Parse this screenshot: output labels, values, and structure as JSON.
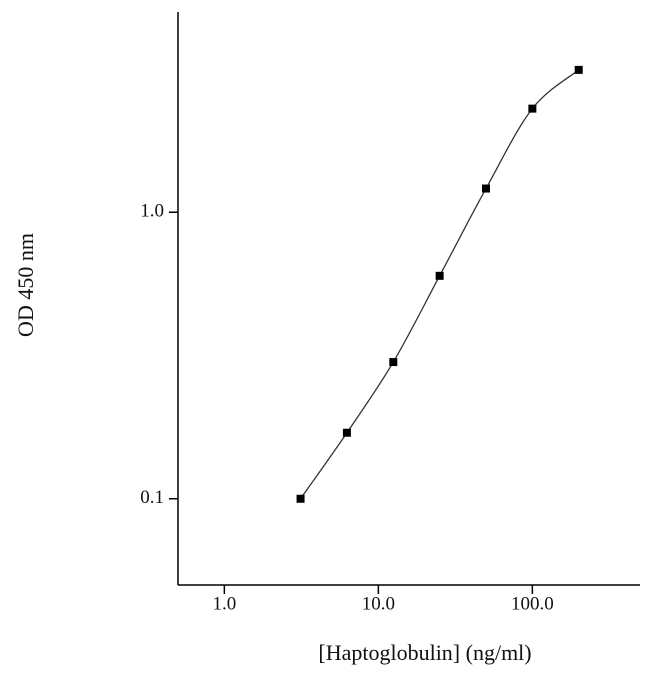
{
  "chart_data": {
    "type": "scatter",
    "x_label": "[Haptoglobulin] (ng/ml)",
    "y_label": "OD 450 nm",
    "x": [
      3.125,
      6.25,
      12.5,
      25,
      50,
      100,
      200
    ],
    "values": [
      0.1,
      0.17,
      0.3,
      0.6,
      1.21,
      2.3,
      3.14
    ],
    "color": "#000000",
    "xlim": [
      0.5,
      500
    ],
    "ylim": [
      0.05,
      5
    ],
    "xticks": [
      {
        "value": 1,
        "label": "1.0"
      },
      {
        "value": 10,
        "label": "10.0"
      },
      {
        "value": 100,
        "label": "100.0"
      }
    ],
    "yticks": [
      0.1,
      {
        "value": 1,
        "label": "1.0"
      }
    ],
    "x_log": true,
    "y_log": true
  }
}
